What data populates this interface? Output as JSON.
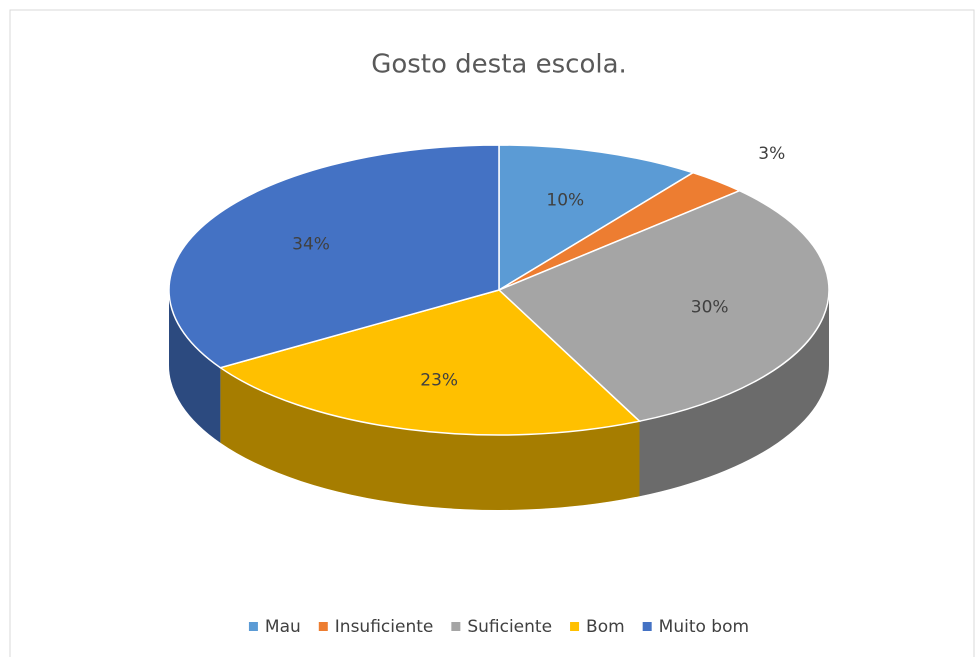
{
  "chart_data": {
    "type": "pie",
    "title": "Gosto desta escola.",
    "categories": [
      "Mau",
      "Insuficiente",
      "Suficiente",
      "Bom",
      "Muito bom"
    ],
    "values": [
      10,
      3,
      30,
      23,
      34
    ],
    "value_labels": [
      "10%",
      "3%",
      "30%",
      "23%",
      "34%"
    ],
    "colors": [
      "#5b9bd5",
      "#ed7d31",
      "#a5a5a5",
      "#ffc000",
      "#4472c4"
    ],
    "legend": "bottom"
  }
}
